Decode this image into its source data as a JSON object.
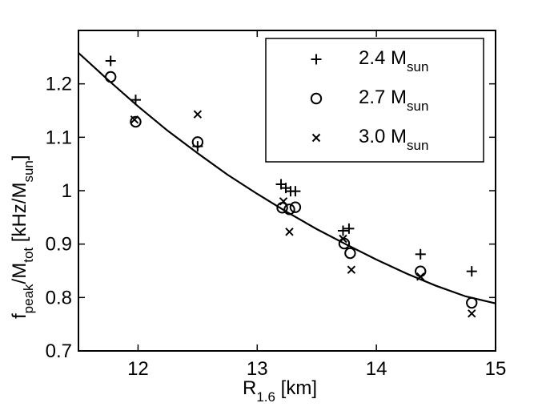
{
  "chart_data": {
    "type": "scatter",
    "title": "",
    "xlabel": {
      "main": "R",
      "sub": "1.6",
      "suffix": " [km]"
    },
    "ylabel": {
      "f": "f",
      "f_sub": "peak",
      "mid": "/M",
      "mid_sub": "tot",
      "unit_pre": " [kHz/M",
      "unit_sub": "sun",
      "unit_post": "]"
    },
    "xlim": [
      11.5,
      15
    ],
    "ylim": [
      0.7,
      1.3
    ],
    "xticks": [
      12,
      13,
      14,
      15
    ],
    "xtick_labels": [
      "12",
      "13",
      "14",
      "15"
    ],
    "yticks": [
      0.7,
      0.8,
      0.9,
      1.0,
      1.1,
      1.2
    ],
    "ytick_labels": [
      "0.7",
      "0.8",
      "0.9",
      "1",
      "1.1",
      "1.2"
    ],
    "grid": false,
    "legend_position": "top-right",
    "series": [
      {
        "name": "2.4 M",
        "name_sub": "sun",
        "marker": "plus",
        "x": [
          11.77,
          11.98,
          12.5,
          13.2,
          13.24,
          13.28,
          13.32,
          13.72,
          13.77,
          14.37,
          14.8
        ],
        "y": [
          1.243,
          1.17,
          1.083,
          1.012,
          1.005,
          0.999,
          0.999,
          0.925,
          0.929,
          0.881,
          0.849
        ]
      },
      {
        "name": "2.7 M",
        "name_sub": "sun",
        "marker": "circle",
        "x": [
          11.77,
          11.98,
          12.5,
          13.21,
          13.27,
          13.32,
          13.73,
          13.78,
          14.37,
          14.8
        ],
        "y": [
          1.213,
          1.129,
          1.091,
          0.968,
          0.965,
          0.969,
          0.901,
          0.883,
          0.849,
          0.79
        ]
      },
      {
        "name": "3.0 M",
        "name_sub": "sun",
        "marker": "x",
        "x": [
          11.97,
          12.5,
          13.22,
          13.27,
          13.72,
          13.79,
          14.37,
          14.8
        ],
        "y": [
          1.133,
          1.143,
          0.98,
          0.923,
          0.91,
          0.852,
          0.839,
          0.77
        ]
      }
    ],
    "fit_curve": {
      "x": [
        11.5,
        11.75,
        12.0,
        12.25,
        12.5,
        12.75,
        13.0,
        13.25,
        13.5,
        13.75,
        14.0,
        14.25,
        14.5,
        14.75,
        15.0
      ],
      "y": [
        1.258,
        1.207,
        1.158,
        1.112,
        1.07,
        1.03,
        0.994,
        0.96,
        0.928,
        0.899,
        0.871,
        0.845,
        0.822,
        0.802,
        0.789
      ]
    }
  }
}
